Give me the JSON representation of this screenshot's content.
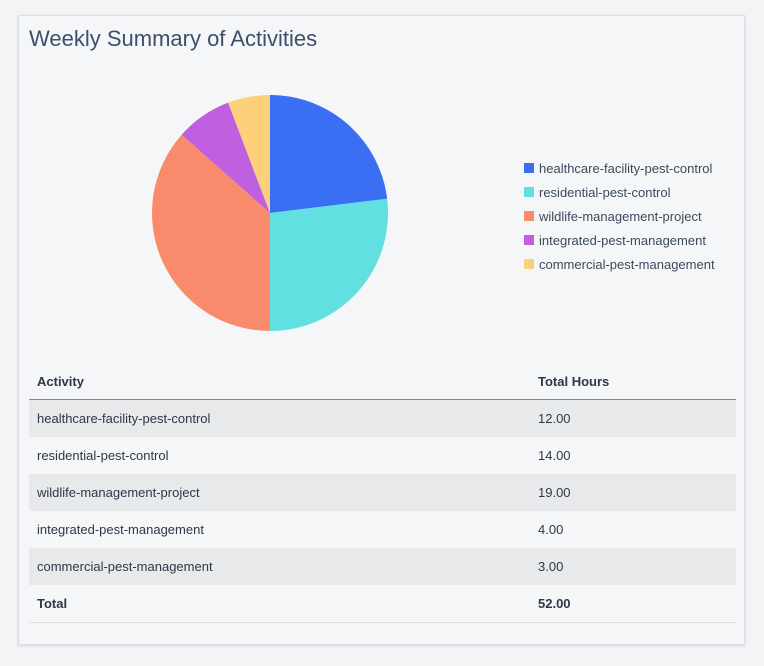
{
  "title": "Weekly Summary of Activities",
  "chart_data": {
    "type": "pie",
    "categories": [
      "healthcare-facility-pest-control",
      "residential-pest-control",
      "wildlife-management-project",
      "integrated-pest-management",
      "commercial-pest-management"
    ],
    "values": [
      12,
      14,
      19,
      4,
      3
    ],
    "colors": [
      "#3b6ff3",
      "#62dfe0",
      "#f98b6c",
      "#c05fe0",
      "#fdd07b"
    ],
    "legend": "right"
  },
  "table": {
    "headers": [
      "Activity",
      "Total Hours"
    ],
    "rows": [
      [
        "healthcare-facility-pest-control",
        "12.00"
      ],
      [
        "residential-pest-control",
        "14.00"
      ],
      [
        "wildlife-management-project",
        "19.00"
      ],
      [
        "integrated-pest-management",
        "4.00"
      ],
      [
        "commercial-pest-management",
        "3.00"
      ]
    ],
    "total": [
      "Total",
      "52.00"
    ]
  }
}
